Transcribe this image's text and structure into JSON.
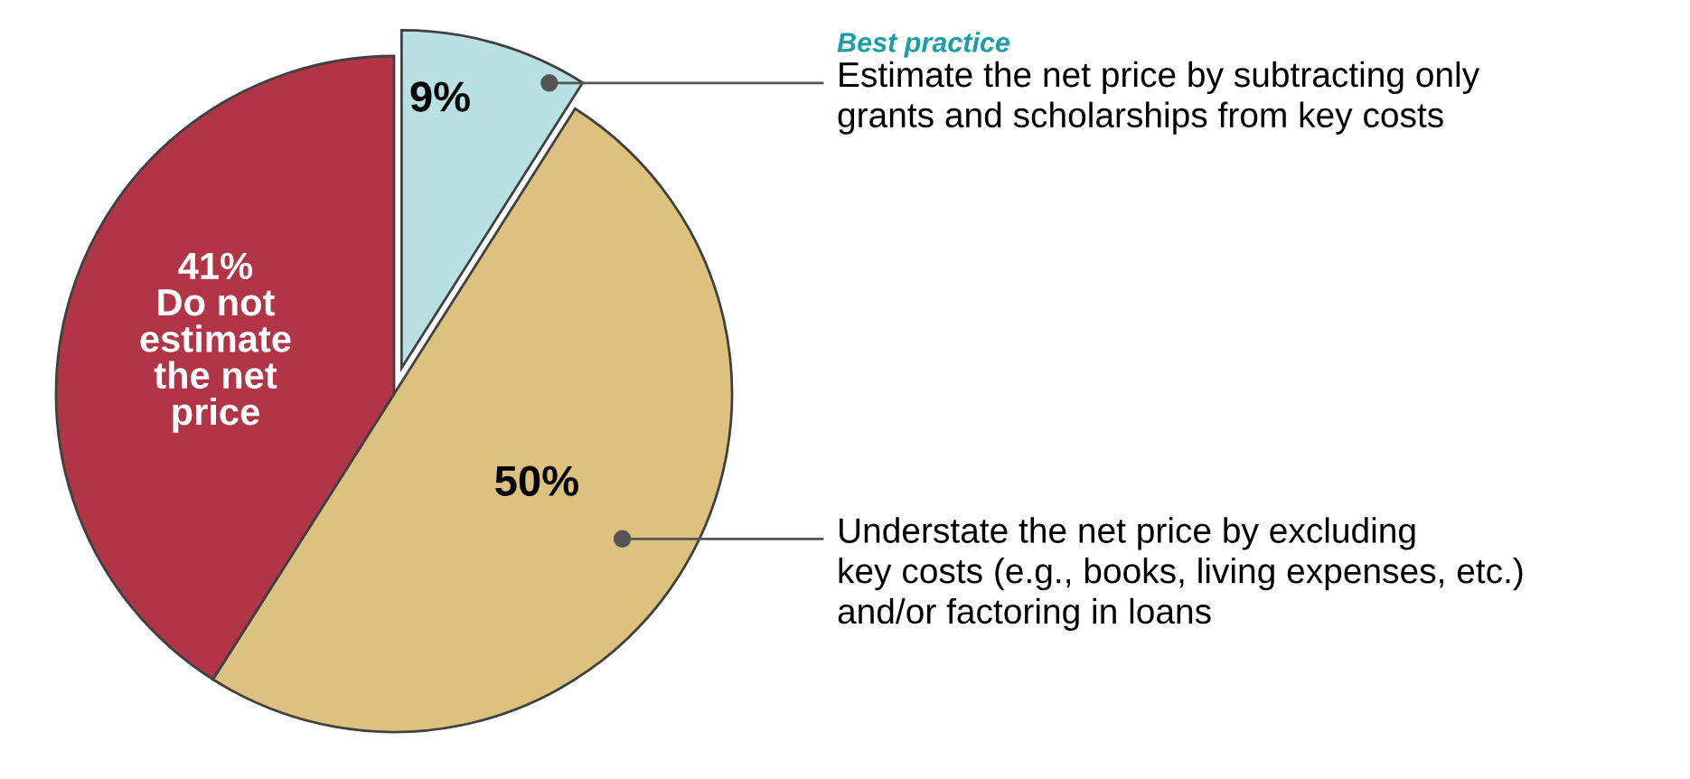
{
  "chart_data": {
    "type": "pie",
    "categories": [
      "Estimate the net price by subtracting only\ngrants and scholarships from key costs",
      "Understate the net price by excluding\nkey costs (e.g., books, living expenses, etc.)\nand/or factoring in loans",
      "Do not estimate the net price"
    ],
    "values": [
      9,
      50,
      41
    ],
    "value_labels": [
      "9%",
      "50%",
      "41%"
    ],
    "colors": [
      "#b9e1e4",
      "#dcc17f",
      "#b23447"
    ],
    "annotations": [
      "Best practice"
    ],
    "legend": false
  }
}
